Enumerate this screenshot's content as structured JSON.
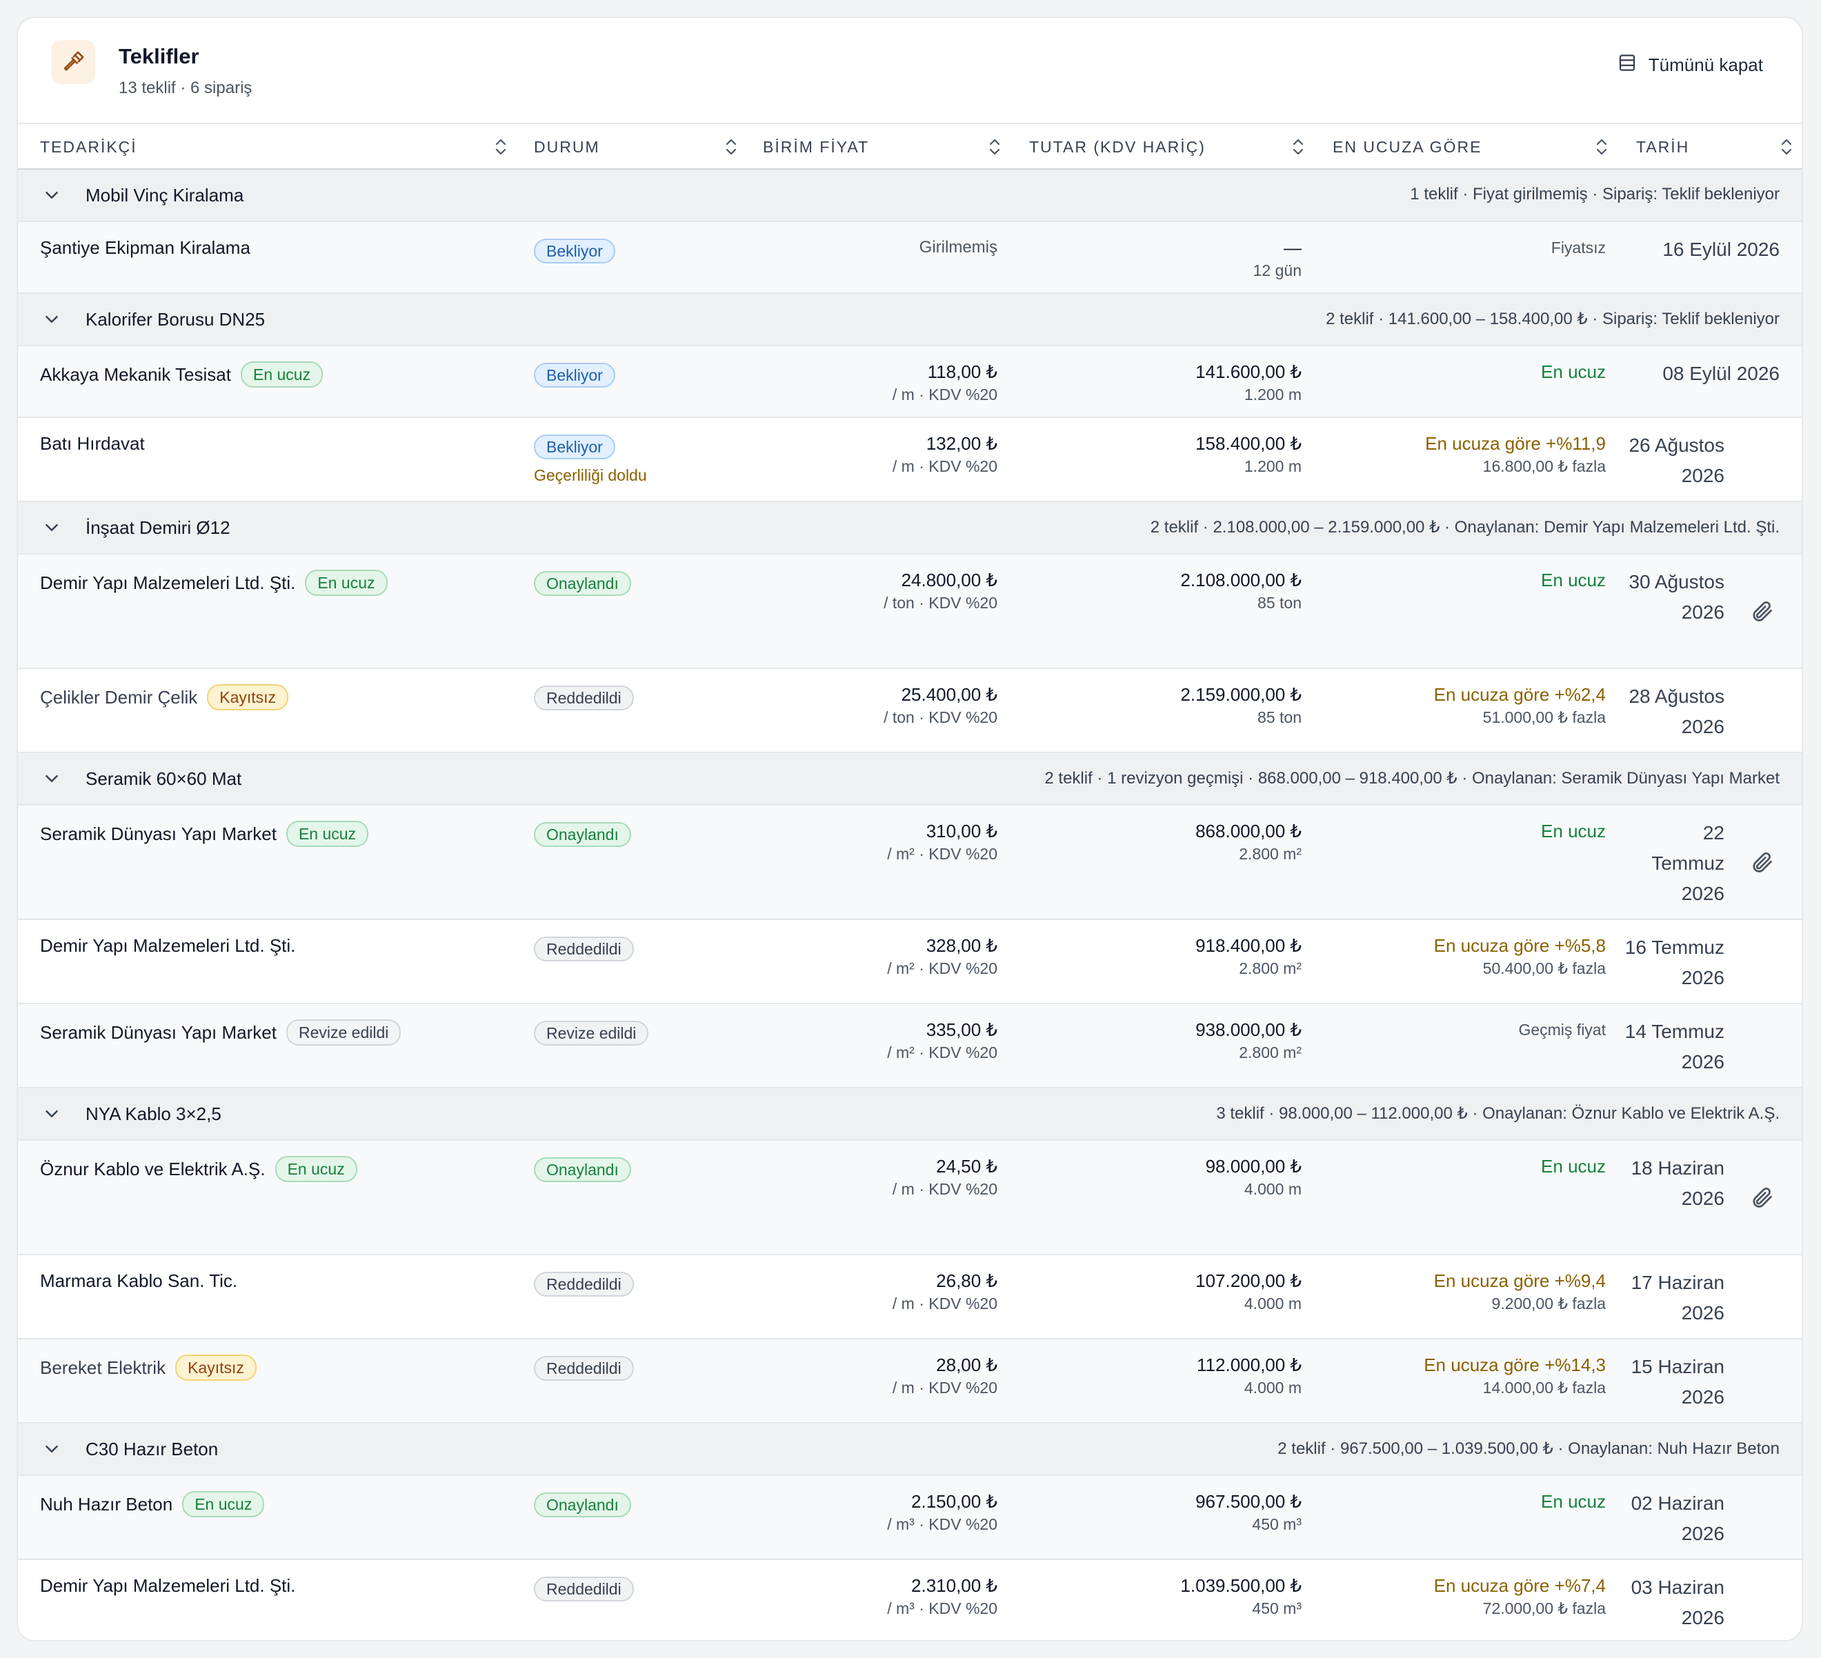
{
  "header": {
    "title": "Teklifler",
    "subtitle": "13 teklif · 6 sipariş",
    "collapse_all": "Tümünü kapat",
    "icon": "gavel-icon"
  },
  "columns": {
    "supplier": "TEDARİKÇİ",
    "status": "DURUM",
    "unit_price": "BİRİM FİYAT",
    "total": "TUTAR (KDV HARİÇ)",
    "vs_cheapest": "EN UCUZA GÖRE",
    "date": "TARİH"
  },
  "groups": [
    {
      "name": "Mobil Vinç Kiralama",
      "summary": "1 teklif · Fiyat girilmemiş · Sipariş: Teklif bekleniyor",
      "rows": [
        {
          "supplier": "Şantiye Ekipman Kiralama",
          "status": "Bekliyor",
          "price_main": "Girilmemiş",
          "total_main": "—",
          "total_sub": "12 gün",
          "cmp_main": "Fiyatsız",
          "date": "16 Eylül 2026"
        }
      ]
    },
    {
      "name": "Kalorifer Borusu DN25",
      "summary": "2 teklif · 141.600,00 – 158.400,00 ₺ · Sipariş: Teklif bekleniyor",
      "rows": [
        {
          "supplier": "Akkaya Mekanik Tesisat",
          "tag": "En ucuz",
          "status": "Bekliyor",
          "price_main": "118,00 ₺",
          "price_sub": "/ m · KDV %20",
          "total_main": "141.600,00 ₺",
          "total_sub": "1.200 m",
          "cmp_main": "En ucuz",
          "date": "08 Eylül 2026"
        },
        {
          "supplier": "Batı Hırdavat",
          "status": "Bekliyor",
          "status_note": "Geçerliliği doldu",
          "price_main": "132,00 ₺",
          "price_sub": "/ m · KDV %20",
          "total_main": "158.400,00 ₺",
          "total_sub": "1.200 m",
          "cmp_main": "En ucuza göre +%11,9",
          "cmp_sub": "16.800,00 ₺ fazla",
          "date": "26 Ağustos 2026"
        }
      ]
    },
    {
      "name": "İnşaat Demiri Ø12",
      "summary": "2 teklif · 2.108.000,00 – 2.159.000,00 ₺ · Onaylanan: Demir Yapı Malzemeleri Ltd. Şti.",
      "rows": [
        {
          "supplier": "Demir Yapı Malzemeleri Ltd. Şti.",
          "tag": "En ucuz",
          "status": "Onaylandı",
          "price_main": "24.800,00 ₺",
          "price_sub": "/ ton · KDV %20",
          "total_main": "2.108.000,00 ₺",
          "total_sub": "85 ton",
          "cmp_main": "En ucuz",
          "date": "30 Ağustos 2026",
          "attachment": "paperclip-icon"
        },
        {
          "supplier": "Çelikler Demir Çelik",
          "tag": "Kayıtsız",
          "status": "Reddedildi",
          "price_main": "25.400,00 ₺",
          "price_sub": "/ ton · KDV %20",
          "total_main": "2.159.000,00 ₺",
          "total_sub": "85 ton",
          "cmp_main": "En ucuza göre +%2,4",
          "cmp_sub": "51.000,00 ₺ fazla",
          "date": "28 Ağustos 2026"
        }
      ]
    },
    {
      "name": "Seramik 60×60 Mat",
      "summary": "2 teklif · 1 revizyon geçmişi · 868.000,00 – 918.400,00 ₺ · Onaylanan: Seramik Dünyası Yapı Market",
      "rows": [
        {
          "supplier": "Seramik Dünyası Yapı Market",
          "tag": "En ucuz",
          "status": "Onaylandı",
          "price_main": "310,00 ₺",
          "price_sub": "/ m² · KDV %20",
          "total_main": "868.000,00 ₺",
          "total_sub": "2.800 m²",
          "cmp_main": "En ucuz",
          "date": "22 Temmuz 2026",
          "attachment": "paperclip-icon"
        },
        {
          "supplier": "Demir Yapı Malzemeleri Ltd. Şti.",
          "status": "Reddedildi",
          "price_main": "328,00 ₺",
          "price_sub": "/ m² · KDV %20",
          "total_main": "918.400,00 ₺",
          "total_sub": "2.800 m²",
          "cmp_main": "En ucuza göre +%5,8",
          "cmp_sub": "50.400,00 ₺ fazla",
          "date": "16 Temmuz 2026"
        },
        {
          "supplier": "Seramik Dünyası Yapı Market",
          "tag": "Revize edildi",
          "status": "Revize edildi",
          "price_main": "335,00 ₺",
          "price_sub": "/ m² · KDV %20",
          "total_main": "938.000,00 ₺",
          "total_sub": "2.800 m²",
          "cmp_main": "Geçmiş fiyat",
          "date": "14 Temmuz 2026"
        }
      ]
    },
    {
      "name": "NYA Kablo 3×2,5",
      "summary": "3 teklif · 98.000,00 – 112.000,00 ₺ · Onaylanan: Öznur Kablo ve Elektrik A.Ş.",
      "rows": [
        {
          "supplier": "Öznur Kablo ve Elektrik A.Ş.",
          "tag": "En ucuz",
          "status": "Onaylandı",
          "price_main": "24,50 ₺",
          "price_sub": "/ m · KDV %20",
          "total_main": "98.000,00 ₺",
          "total_sub": "4.000 m",
          "cmp_main": "En ucuz",
          "date": "18 Haziran 2026",
          "attachment": "paperclip-icon"
        },
        {
          "supplier": "Marmara Kablo San. Tic.",
          "status": "Reddedildi",
          "price_main": "26,80 ₺",
          "price_sub": "/ m · KDV %20",
          "total_main": "107.200,00 ₺",
          "total_sub": "4.000 m",
          "cmp_main": "En ucuza göre +%9,4",
          "cmp_sub": "9.200,00 ₺ fazla",
          "date": "17 Haziran 2026"
        },
        {
          "supplier": "Bereket Elektrik",
          "tag": "Kayıtsız",
          "status": "Reddedildi",
          "price_main": "28,00 ₺",
          "price_sub": "/ m · KDV %20",
          "total_main": "112.000,00 ₺",
          "total_sub": "4.000 m",
          "cmp_main": "En ucuza göre +%14,3",
          "cmp_sub": "14.000,00 ₺ fazla",
          "date": "15 Haziran 2026"
        }
      ]
    },
    {
      "name": "C30 Hazır Beton",
      "summary": "2 teklif · 967.500,00 – 1.039.500,00 ₺ · Onaylanan: Nuh Hazır Beton",
      "rows": [
        {
          "supplier": "Nuh Hazır Beton",
          "tag": "En ucuz",
          "status": "Onaylandı",
          "price_main": "2.150,00 ₺",
          "price_sub": "/ m³ · KDV %20",
          "total_main": "967.500,00 ₺",
          "total_sub": "450 m³",
          "cmp_main": "En ucuz",
          "date": "02 Haziran 2026"
        },
        {
          "supplier": "Demir Yapı Malzemeleri Ltd. Şti.",
          "status": "Reddedildi",
          "price_main": "2.310,00 ₺",
          "price_sub": "/ m³ · KDV %20",
          "total_main": "1.039.500,00 ₺",
          "total_sub": "450 m³",
          "cmp_main": "En ucuza göre +%7,4",
          "cmp_sub": "72.000,00 ₺ fazla",
          "date": "03 Haziran 2026"
        }
      ]
    }
  ]
}
